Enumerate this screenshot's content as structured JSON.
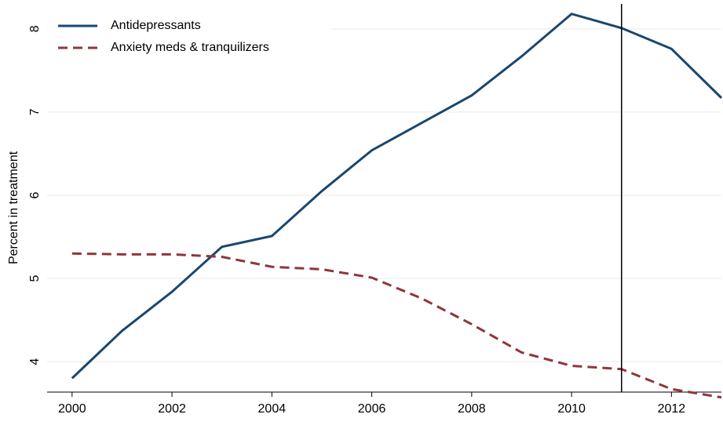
{
  "chart_data": {
    "type": "line",
    "y_label": "Percent in treatment",
    "x": [
      2000,
      2001,
      2002,
      2003,
      2004,
      2005,
      2006,
      2007,
      2008,
      2009,
      2010,
      2011,
      2012,
      2013
    ],
    "series": [
      {
        "name": "Antidepressants",
        "color": "#1a476f",
        "dash": false,
        "values": [
          3.8,
          4.37,
          4.84,
          5.38,
          5.51,
          6.05,
          6.54,
          6.87,
          7.2,
          7.67,
          8.18,
          8.01,
          7.76,
          7.17
        ]
      },
      {
        "name": "Anxiety meds & tranquilizers",
        "color": "#90353b",
        "dash": true,
        "values": [
          5.3,
          5.29,
          5.29,
          5.26,
          5.14,
          5.11,
          5.01,
          4.76,
          4.45,
          4.11,
          3.95,
          3.91,
          3.67,
          3.57
        ]
      }
    ],
    "xlim": [
      1999.5,
      2013
    ],
    "ylim": [
      3.7,
      8.3
    ],
    "xticks": [
      2000,
      2002,
      2004,
      2006,
      2008,
      2010,
      2012
    ],
    "yticks": [
      4,
      5,
      6,
      7,
      8
    ],
    "vline": 2011,
    "grid": true,
    "legend": "upper left"
  }
}
